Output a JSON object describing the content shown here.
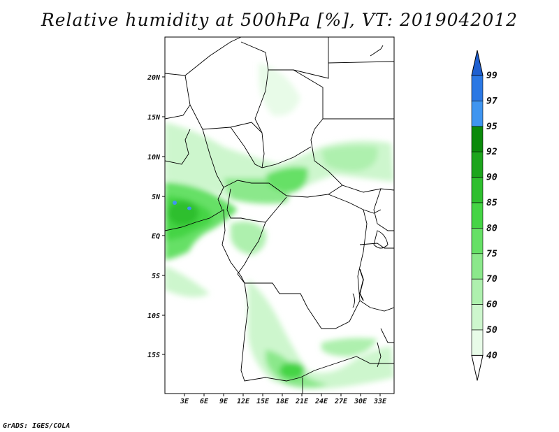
{
  "title": "Relative humidity at 500hPa [%], VT: 2019042012",
  "footer": "GrADS: IGES/COLA",
  "map": {
    "lon_labels": [
      "3E",
      "6E",
      "9E",
      "12E",
      "15E",
      "18E",
      "21E",
      "24E",
      "27E",
      "30E",
      "33E"
    ],
    "lat_labels": [
      "20N",
      "15N",
      "10N",
      "5N",
      "EQ",
      "5S",
      "10S",
      "15S"
    ]
  },
  "colorbar": {
    "levels": [
      "99",
      "97",
      "95",
      "92",
      "90",
      "85",
      "80",
      "75",
      "70",
      "60",
      "50",
      "40"
    ],
    "colors": [
      "#1e5fd0",
      "#2b78e4",
      "#3f95f0",
      "#0b8a0b",
      "#1da51d",
      "#2fbf2f",
      "#45d445",
      "#66e066",
      "#8be88b",
      "#aef0ae",
      "#cdf6cd",
      "#e8fbe8",
      "#ffffff"
    ]
  }
}
